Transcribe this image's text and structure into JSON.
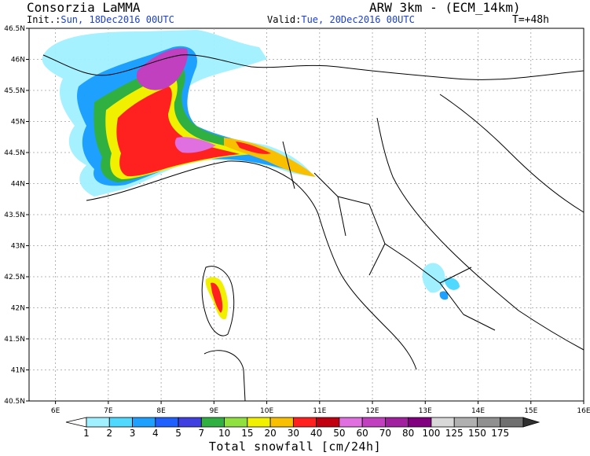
{
  "header": {
    "title_left": "Consorzia LaMMA",
    "title_right": "ARW 3km - (ECM_14km)",
    "init_label": "Init.:",
    "init_value": "Sun, 18Dec2016 00UTC",
    "valid_label": "Valid:",
    "valid_value": "Tue, 20Dec2016 00UTC",
    "forecast_step": "T=+48h"
  },
  "map": {
    "lat_ticks": [
      "46.5N",
      "46N",
      "45.5N",
      "45N",
      "44.5N",
      "44N",
      "43.5N",
      "43N",
      "42.5N",
      "42N",
      "41.5N",
      "41N",
      "40.5N"
    ],
    "lon_ticks": [
      "6E",
      "7E",
      "8E",
      "9E",
      "10E",
      "11E",
      "12E",
      "13E",
      "14E",
      "15E",
      "16E"
    ],
    "lat_range": [
      40.5,
      46.5
    ],
    "lon_range": [
      5.5,
      16.0
    ],
    "grid": true
  },
  "legend": {
    "title": "Total snowfall [cm/24h]",
    "levels": [
      "1",
      "2",
      "3",
      "4",
      "5",
      "7",
      "10",
      "15",
      "20",
      "30",
      "40",
      "50",
      "60",
      "70",
      "80",
      "100",
      "125",
      "150",
      "175"
    ],
    "colors": [
      "#a0f0ff",
      "#50d8ff",
      "#1ea0ff",
      "#2060ff",
      "#4040e0",
      "#30b040",
      "#90e040",
      "#f0f000",
      "#f8c000",
      "#ff2020",
      "#c00010",
      "#e070e0",
      "#c040c0",
      "#a020a0",
      "#800080",
      "#d8d8d8",
      "#b0b0b0",
      "#909090",
      "#707070",
      "#303030"
    ],
    "land_color": "#ffffff"
  }
}
